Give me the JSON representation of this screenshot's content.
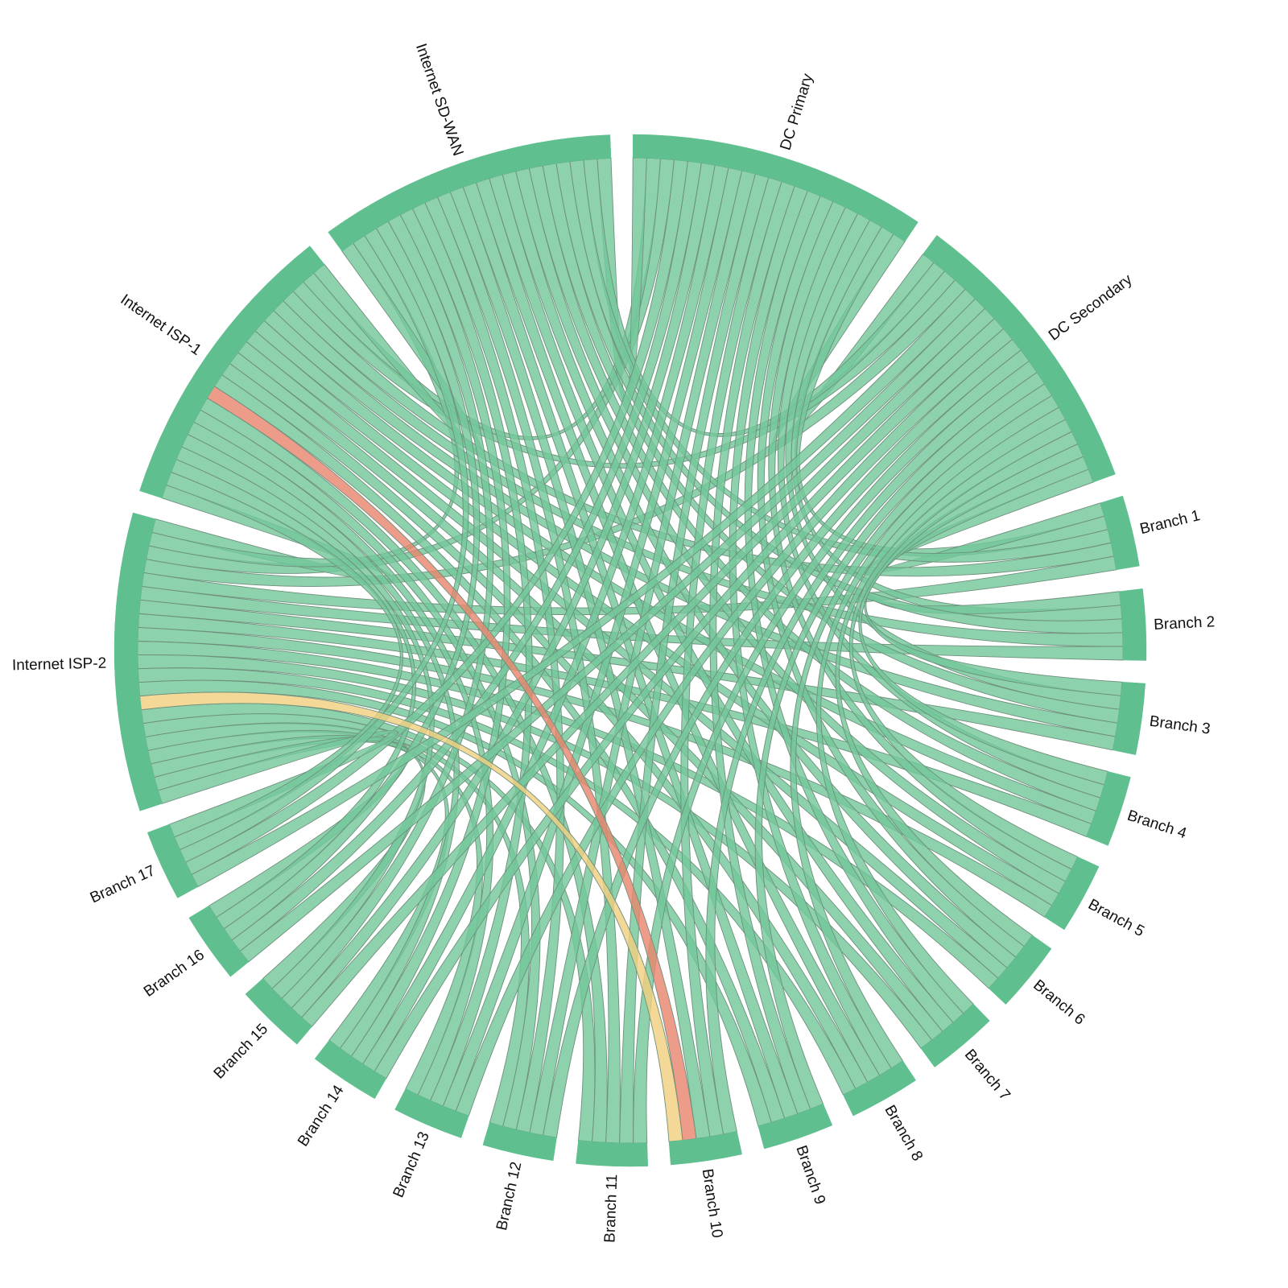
{
  "chart_data": {
    "type": "chord",
    "nodes": [
      "DC Primary",
      "DC Secondary",
      "Branch 1",
      "Branch 2",
      "Branch 3",
      "Branch 4",
      "Branch 5",
      "Branch 6",
      "Branch 7",
      "Branch 8",
      "Branch 9",
      "Branch 10",
      "Branch 11",
      "Branch 12",
      "Branch 13",
      "Branch 14",
      "Branch 15",
      "Branch 16",
      "Branch 17",
      "Internet ISP-2",
      "Internet ISP-1",
      "Internet SD-WAN"
    ],
    "colors": {
      "node": "#5fbf8f",
      "link": "#74c79b",
      "link_down": "#e8866e",
      "link_degraded": "#f0d080"
    },
    "links": [
      [
        "DC Primary",
        "DC Secondary",
        1
      ],
      [
        "DC Primary",
        "Internet ISP-2",
        1
      ],
      [
        "DC Primary",
        "Internet ISP-1",
        1
      ],
      [
        "DC Primary",
        "Internet SD-WAN",
        1
      ],
      [
        "DC Secondary",
        "Internet ISP-2",
        1
      ],
      [
        "DC Secondary",
        "Internet ISP-1",
        1
      ],
      [
        "DC Secondary",
        "Internet SD-WAN",
        1
      ],
      [
        "Internet ISP-2",
        "Internet ISP-1",
        1
      ],
      [
        "Internet ISP-2",
        "Internet SD-WAN",
        1
      ],
      [
        "Internet ISP-1",
        "Internet SD-WAN",
        1
      ],
      [
        "Branch 1",
        "DC Primary",
        1
      ],
      [
        "Branch 1",
        "DC Secondary",
        1
      ],
      [
        "Branch 1",
        "Internet ISP-2",
        1
      ],
      [
        "Branch 1",
        "Internet ISP-1",
        1
      ],
      [
        "Branch 1",
        "Internet SD-WAN",
        1
      ],
      [
        "Branch 2",
        "DC Primary",
        1
      ],
      [
        "Branch 2",
        "DC Secondary",
        1
      ],
      [
        "Branch 2",
        "Internet ISP-2",
        1
      ],
      [
        "Branch 2",
        "Internet ISP-1",
        1
      ],
      [
        "Branch 2",
        "Internet SD-WAN",
        1
      ],
      [
        "Branch 3",
        "DC Primary",
        1
      ],
      [
        "Branch 3",
        "DC Secondary",
        1
      ],
      [
        "Branch 3",
        "Internet ISP-2",
        1
      ],
      [
        "Branch 3",
        "Internet ISP-1",
        1
      ],
      [
        "Branch 3",
        "Internet SD-WAN",
        1
      ],
      [
        "Branch 4",
        "DC Primary",
        1
      ],
      [
        "Branch 4",
        "DC Secondary",
        1
      ],
      [
        "Branch 4",
        "Internet ISP-2",
        1
      ],
      [
        "Branch 4",
        "Internet ISP-1",
        1
      ],
      [
        "Branch 4",
        "Internet SD-WAN",
        1
      ],
      [
        "Branch 5",
        "DC Primary",
        1
      ],
      [
        "Branch 5",
        "DC Secondary",
        1
      ],
      [
        "Branch 5",
        "Internet ISP-2",
        1
      ],
      [
        "Branch 5",
        "Internet ISP-1",
        1
      ],
      [
        "Branch 5",
        "Internet SD-WAN",
        1
      ],
      [
        "Branch 6",
        "DC Primary",
        1
      ],
      [
        "Branch 6",
        "DC Secondary",
        1
      ],
      [
        "Branch 6",
        "Internet ISP-2",
        1
      ],
      [
        "Branch 6",
        "Internet ISP-1",
        1
      ],
      [
        "Branch 6",
        "Internet SD-WAN",
        1
      ],
      [
        "Branch 7",
        "DC Primary",
        1
      ],
      [
        "Branch 7",
        "DC Secondary",
        1
      ],
      [
        "Branch 7",
        "Internet ISP-2",
        1
      ],
      [
        "Branch 7",
        "Internet ISP-1",
        1
      ],
      [
        "Branch 7",
        "Internet SD-WAN",
        1
      ],
      [
        "Branch 8",
        "DC Primary",
        1
      ],
      [
        "Branch 8",
        "DC Secondary",
        1
      ],
      [
        "Branch 8",
        "Internet ISP-2",
        1
      ],
      [
        "Branch 8",
        "Internet ISP-1",
        1
      ],
      [
        "Branch 8",
        "Internet SD-WAN",
        1
      ],
      [
        "Branch 9",
        "DC Primary",
        1
      ],
      [
        "Branch 9",
        "DC Secondary",
        1
      ],
      [
        "Branch 9",
        "Internet ISP-2",
        1
      ],
      [
        "Branch 9",
        "Internet ISP-1",
        1
      ],
      [
        "Branch 9",
        "Internet SD-WAN",
        1
      ],
      [
        "Branch 10",
        "DC Primary",
        1
      ],
      [
        "Branch 10",
        "DC Secondary",
        1
      ],
      [
        "Branch 10",
        "Internet ISP-2",
        1,
        "#f0d080"
      ],
      [
        "Branch 10",
        "Internet ISP-1",
        1,
        "#e8866e"
      ],
      [
        "Branch 10",
        "Internet SD-WAN",
        1
      ],
      [
        "Branch 11",
        "DC Primary",
        1
      ],
      [
        "Branch 11",
        "DC Secondary",
        1
      ],
      [
        "Branch 11",
        "Internet ISP-2",
        1
      ],
      [
        "Branch 11",
        "Internet ISP-1",
        1
      ],
      [
        "Branch 11",
        "Internet SD-WAN",
        1
      ],
      [
        "Branch 12",
        "DC Primary",
        1
      ],
      [
        "Branch 12",
        "DC Secondary",
        1
      ],
      [
        "Branch 12",
        "Internet ISP-2",
        1
      ],
      [
        "Branch 12",
        "Internet ISP-1",
        1
      ],
      [
        "Branch 12",
        "Internet SD-WAN",
        1
      ],
      [
        "Branch 13",
        "DC Primary",
        1
      ],
      [
        "Branch 13",
        "DC Secondary",
        1
      ],
      [
        "Branch 13",
        "Internet ISP-2",
        1
      ],
      [
        "Branch 13",
        "Internet ISP-1",
        1
      ],
      [
        "Branch 13",
        "Internet SD-WAN",
        1
      ],
      [
        "Branch 14",
        "DC Primary",
        1
      ],
      [
        "Branch 14",
        "DC Secondary",
        1
      ],
      [
        "Branch 14",
        "Internet ISP-2",
        1
      ],
      [
        "Branch 14",
        "Internet ISP-1",
        1
      ],
      [
        "Branch 14",
        "Internet SD-WAN",
        1
      ],
      [
        "Branch 15",
        "DC Primary",
        1
      ],
      [
        "Branch 15",
        "DC Secondary",
        1
      ],
      [
        "Branch 15",
        "Internet ISP-2",
        1
      ],
      [
        "Branch 15",
        "Internet ISP-1",
        1
      ],
      [
        "Branch 15",
        "Internet SD-WAN",
        1
      ],
      [
        "Branch 16",
        "DC Primary",
        1
      ],
      [
        "Branch 16",
        "DC Secondary",
        1
      ],
      [
        "Branch 16",
        "Internet ISP-2",
        1
      ],
      [
        "Branch 16",
        "Internet ISP-1",
        1
      ],
      [
        "Branch 16",
        "Internet SD-WAN",
        1
      ],
      [
        "Branch 17",
        "DC Primary",
        1
      ],
      [
        "Branch 17",
        "DC Secondary",
        1
      ],
      [
        "Branch 17",
        "Internet ISP-2",
        1
      ],
      [
        "Branch 17",
        "Internet ISP-1",
        1
      ],
      [
        "Branch 17",
        "Internet SD-WAN",
        1
      ]
    ]
  }
}
